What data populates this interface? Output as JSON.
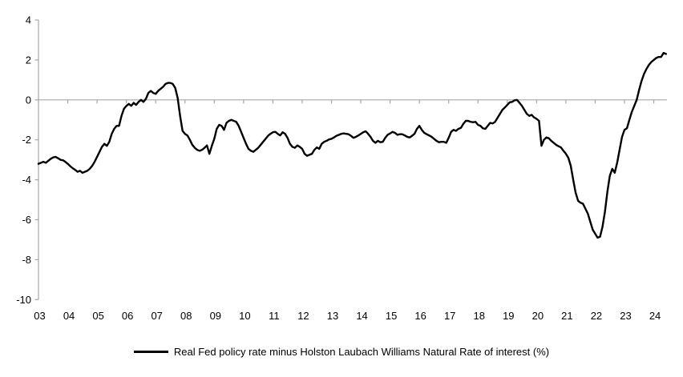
{
  "chart_data": {
    "type": "line",
    "title": "",
    "xlabel": "",
    "ylabel": "",
    "ylim": [
      -10,
      4
    ],
    "y_ticks": [
      4,
      2,
      0,
      -2,
      -4,
      -6,
      -8,
      -10
    ],
    "x_tick_labels": [
      "03",
      "04",
      "05",
      "06",
      "07",
      "08",
      "09",
      "10",
      "11",
      "12",
      "13",
      "14",
      "15",
      "16",
      "17",
      "18",
      "19",
      "20",
      "21",
      "22",
      "23",
      "24"
    ],
    "x_tick_years": [
      2003,
      2004,
      2005,
      2006,
      2007,
      2008,
      2009,
      2010,
      2011,
      2012,
      2013,
      2014,
      2015,
      2016,
      2017,
      2018,
      2019,
      2020,
      2021,
      2022,
      2023,
      2024
    ],
    "grid": false,
    "zero_axis_line": true,
    "axis_color": "#a6a6a6",
    "text_color": "#000000",
    "legend_position": "bottom-center",
    "series": [
      {
        "name": "Real Fed policy rate minus Holston Laubach Williams Natural Rate of interest (%)",
        "color": "#000000",
        "x_start_year": 2003,
        "x_interval": "monthly",
        "values": [
          -3.2,
          -3.15,
          -3.1,
          -3.15,
          -3.05,
          -2.95,
          -2.88,
          -2.85,
          -2.92,
          -3.0,
          -3.02,
          -3.1,
          -3.2,
          -3.32,
          -3.42,
          -3.5,
          -3.6,
          -3.55,
          -3.65,
          -3.6,
          -3.55,
          -3.45,
          -3.3,
          -3.1,
          -2.85,
          -2.6,
          -2.35,
          -2.2,
          -2.3,
          -2.1,
          -1.7,
          -1.45,
          -1.3,
          -1.3,
          -0.8,
          -0.45,
          -0.3,
          -0.2,
          -0.3,
          -0.15,
          -0.25,
          -0.1,
          0.0,
          -0.1,
          0.05,
          0.35,
          0.45,
          0.35,
          0.3,
          0.45,
          0.55,
          0.65,
          0.8,
          0.85,
          0.85,
          0.8,
          0.6,
          0.1,
          -0.8,
          -1.55,
          -1.7,
          -1.78,
          -2.0,
          -2.25,
          -2.4,
          -2.5,
          -2.55,
          -2.5,
          -2.4,
          -2.28,
          -2.7,
          -2.3,
          -1.95,
          -1.45,
          -1.25,
          -1.3,
          -1.5,
          -1.15,
          -1.05,
          -1.0,
          -1.05,
          -1.1,
          -1.3,
          -1.6,
          -1.9,
          -2.2,
          -2.45,
          -2.55,
          -2.6,
          -2.5,
          -2.4,
          -2.25,
          -2.1,
          -1.95,
          -1.8,
          -1.7,
          -1.62,
          -1.6,
          -1.7,
          -1.78,
          -1.62,
          -1.7,
          -1.9,
          -2.2,
          -2.35,
          -2.4,
          -2.28,
          -2.35,
          -2.45,
          -2.7,
          -2.8,
          -2.75,
          -2.7,
          -2.5,
          -2.38,
          -2.45,
          -2.2,
          -2.1,
          -2.05,
          -1.98,
          -1.95,
          -1.88,
          -1.8,
          -1.75,
          -1.7,
          -1.68,
          -1.7,
          -1.72,
          -1.8,
          -1.9,
          -1.85,
          -1.78,
          -1.7,
          -1.62,
          -1.57,
          -1.7,
          -1.85,
          -2.05,
          -2.15,
          -2.05,
          -2.12,
          -2.1,
          -1.9,
          -1.75,
          -1.68,
          -1.6,
          -1.65,
          -1.75,
          -1.72,
          -1.72,
          -1.78,
          -1.85,
          -1.88,
          -1.8,
          -1.7,
          -1.45,
          -1.3,
          -1.5,
          -1.65,
          -1.72,
          -1.78,
          -1.85,
          -1.95,
          -2.05,
          -2.12,
          -2.1,
          -2.1,
          -2.15,
          -1.9,
          -1.6,
          -1.5,
          -1.55,
          -1.45,
          -1.4,
          -1.2,
          -1.05,
          -1.05,
          -1.1,
          -1.12,
          -1.1,
          -1.25,
          -1.3,
          -1.42,
          -1.45,
          -1.3,
          -1.15,
          -1.18,
          -1.1,
          -0.9,
          -0.7,
          -0.5,
          -0.38,
          -0.25,
          -0.12,
          -0.1,
          -0.02,
          0.0,
          -0.15,
          -0.3,
          -0.5,
          -0.7,
          -0.8,
          -0.75,
          -0.88,
          -0.95,
          -1.05,
          -2.3,
          -2.0,
          -1.88,
          -1.92,
          -2.05,
          -2.15,
          -2.25,
          -2.32,
          -2.38,
          -2.55,
          -2.7,
          -2.9,
          -3.3,
          -4.0,
          -4.65,
          -5.05,
          -5.15,
          -5.2,
          -5.45,
          -5.7,
          -6.1,
          -6.5,
          -6.7,
          -6.9,
          -6.85,
          -6.35,
          -5.6,
          -4.6,
          -3.8,
          -3.45,
          -3.65,
          -3.15,
          -2.5,
          -1.85,
          -1.5,
          -1.42,
          -1.0,
          -0.6,
          -0.3,
          0.0,
          0.5,
          0.95,
          1.3,
          1.55,
          1.75,
          1.9,
          2.0,
          2.1,
          2.15,
          2.15,
          2.35,
          2.3
        ]
      }
    ]
  },
  "legend": {
    "label": "Real Fed policy rate minus Holston Laubach Williams Natural Rate of interest (%)"
  }
}
